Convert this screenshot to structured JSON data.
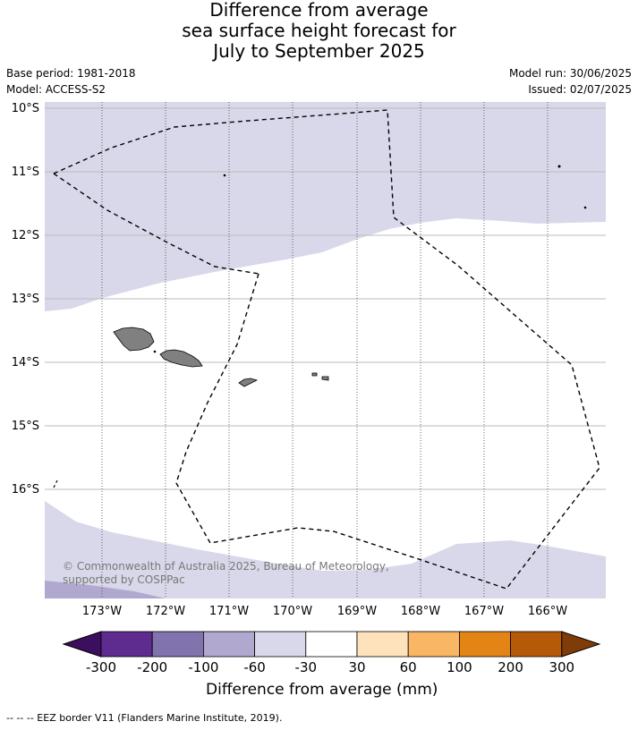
{
  "title": {
    "line1": "Difference from average",
    "line2": "sea surface height forecast for",
    "line3": "July to September 2025"
  },
  "meta": {
    "base_period": "Base period: 1981-2018",
    "model": "Model: ACCESS-S2",
    "model_run": "Model run: 30/06/2025",
    "issued": "Issued: 02/07/2025"
  },
  "map": {
    "lat_labels": [
      "10°S",
      "11°S",
      "12°S",
      "13°S",
      "14°S",
      "15°S",
      "16°S"
    ],
    "lon_labels": [
      "173°W",
      "172°W",
      "171°W",
      "170°W",
      "169°W",
      "168°W",
      "167°W",
      "166°W"
    ],
    "islands": [
      "Savai'i",
      "Upolu",
      "Tutuila",
      "Manu'a"
    ],
    "land_color": "#808080",
    "credit": "© Commonwealth of Australia 2025, Bureau of Meteorology, supported by COSPPac"
  },
  "colorbar": {
    "ticks": [
      "-300",
      "-200",
      "-100",
      "-60",
      "-30",
      "30",
      "60",
      "100",
      "200",
      "300"
    ],
    "colors": [
      "#3b0f5e",
      "#5e2b8f",
      "#8173ae",
      "#b1a8d0",
      "#d8d8ea",
      "#ffffff",
      "#fde2bb",
      "#f9b664",
      "#e28516",
      "#b45a09",
      "#7f3b08"
    ],
    "caption": "Difference from average (mm)"
  },
  "footer": "--  --  -- EEZ border V11 (Flanders Marine Institute, 2019)."
}
